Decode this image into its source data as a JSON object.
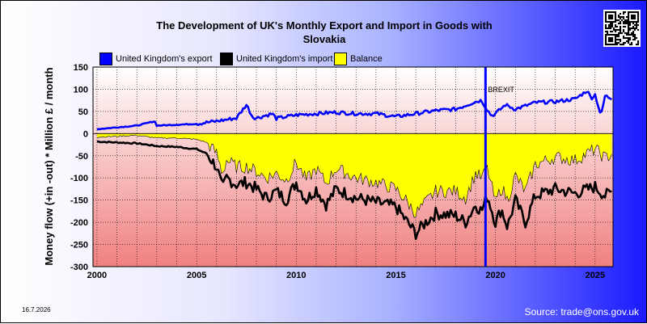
{
  "title": "The Development of UK's Monthly Export and Import in Goods with\nSlovakia",
  "ylabel": "Money flow (+in -out) * Million £ / month",
  "date_stamp": "16.7.2026",
  "source": "Source: trade@ons.gov.uk",
  "colors": {
    "export": "#0000ff",
    "import": "#000000",
    "balance": "#ffff00",
    "brexit_line": "#0000ff",
    "plot_top": "#ffffff",
    "plot_bottom": "#f08080"
  },
  "icons": {
    "qr": "qr-code-icon"
  },
  "chart_data": {
    "type": "line",
    "title": "The Development of UK's Monthly Export and Import in Goods with Slovakia",
    "ylabel": "Money flow (+in -out) * Million £ / month",
    "xlabel": "",
    "xlim": [
      1999.8,
      2025.9
    ],
    "ylim": [
      -300,
      150
    ],
    "yticks": [
      150,
      100,
      50,
      0,
      -50,
      -100,
      -150,
      -200,
      -250,
      -300
    ],
    "xticks": [
      2000,
      2005,
      2010,
      2015,
      2020,
      2025
    ],
    "grid": true,
    "legend_position": "top",
    "annotation": {
      "label": "BREXIT",
      "x": 2019.5
    },
    "series": [
      {
        "name": "United Kingdom's export",
        "color": "#0000ff",
        "x": [
          2000,
          2001,
          2002,
          2002.9,
          2003,
          2004,
          2005,
          2006,
          2007,
          2007.5,
          2007.8,
          2008,
          2008.8,
          2009,
          2010,
          2011,
          2012,
          2013,
          2014,
          2015,
          2016,
          2017,
          2018,
          2019,
          2019.3,
          2019.5,
          2019.8,
          2020,
          2020.5,
          2021,
          2022,
          2023,
          2024,
          2024.6,
          2024.8,
          2025,
          2025.3,
          2025.5,
          2025.8
        ],
        "values": [
          10,
          14,
          18,
          28,
          18,
          20,
          22,
          28,
          35,
          65,
          38,
          35,
          45,
          34,
          42,
          45,
          48,
          45,
          45,
          38,
          45,
          52,
          55,
          72,
          75,
          60,
          40,
          45,
          65,
          55,
          70,
          72,
          78,
          97,
          80,
          88,
          40,
          85,
          80
        ]
      },
      {
        "name": "United Kingdom's import",
        "color": "#000000",
        "x": [
          2000,
          2001,
          2002,
          2003,
          2004,
          2005,
          2005.5,
          2006,
          2006.3,
          2006.5,
          2007,
          2007.5,
          2008,
          2008.5,
          2009,
          2009.5,
          2010,
          2010.5,
          2011,
          2011.5,
          2012,
          2013,
          2014,
          2015,
          2015.5,
          2016,
          2016.5,
          2017,
          2018,
          2018.5,
          2019,
          2019.3,
          2019.6,
          2020,
          2020.3,
          2020.6,
          2021,
          2021.5,
          2022,
          2023,
          2024,
          2025,
          2025.5,
          2025.9
        ],
        "values": [
          -18,
          -20,
          -22,
          -28,
          -30,
          -35,
          -45,
          -75,
          -125,
          -100,
          -115,
          -110,
          -125,
          -145,
          -130,
          -150,
          -110,
          -150,
          -125,
          -160,
          -125,
          -145,
          -155,
          -165,
          -195,
          -225,
          -200,
          -180,
          -185,
          -200,
          -160,
          -175,
          -140,
          -200,
          -170,
          -210,
          -150,
          -200,
          -140,
          -125,
          -135,
          -120,
          -140,
          -130
        ]
      },
      {
        "name": "Balance",
        "color": "#ffff00",
        "x": [
          2000,
          2001,
          2002,
          2003,
          2004,
          2005,
          2005.5,
          2006,
          2006.3,
          2006.5,
          2007,
          2007.5,
          2008,
          2008.5,
          2009,
          2009.5,
          2010,
          2010.5,
          2011,
          2011.5,
          2012,
          2013,
          2014,
          2015,
          2015.5,
          2016,
          2016.5,
          2017,
          2018,
          2018.5,
          2019,
          2019.3,
          2019.6,
          2020,
          2020.3,
          2020.6,
          2021,
          2021.5,
          2022,
          2023,
          2024,
          2025,
          2025.5,
          2025.9
        ],
        "values": [
          -8,
          -6,
          -4,
          -10,
          -10,
          -13,
          -20,
          -45,
          -90,
          -60,
          -75,
          -75,
          -85,
          -100,
          -90,
          -105,
          -65,
          -105,
          -80,
          -112,
          -78,
          -100,
          -110,
          -125,
          -150,
          -180,
          -155,
          -130,
          -130,
          -145,
          -90,
          -100,
          -80,
          -155,
          -120,
          -150,
          -95,
          -130,
          -70,
          -53,
          -60,
          -35,
          -55,
          -45
        ]
      }
    ]
  }
}
